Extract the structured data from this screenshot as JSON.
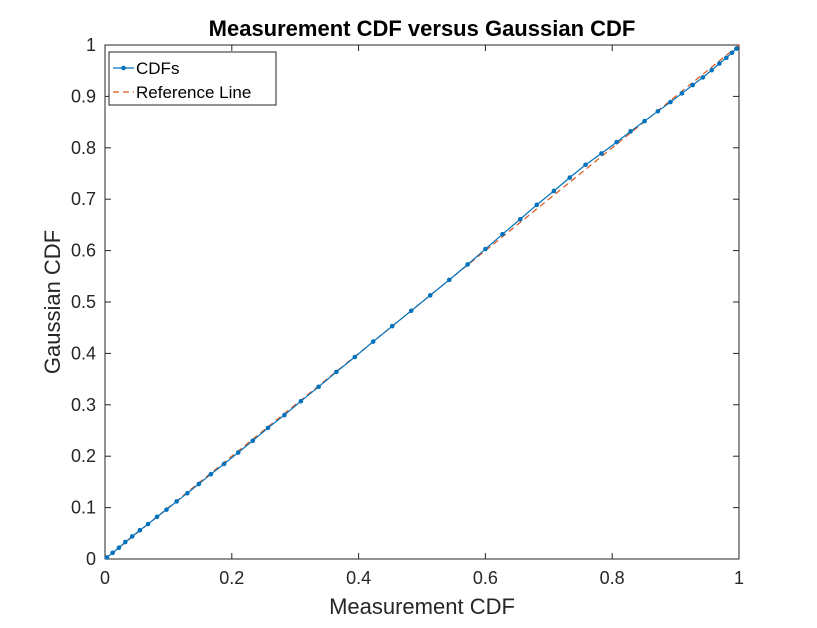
{
  "chart_data": {
    "type": "line",
    "title": "Measurement CDF versus Gaussian CDF",
    "xlabel": "Measurement CDF",
    "ylabel": "Gaussian CDF",
    "xlim": [
      0,
      1
    ],
    "ylim": [
      0,
      1
    ],
    "xticks": [
      0,
      0.2,
      0.4,
      0.6,
      0.8,
      1
    ],
    "xtick_labels": [
      "0",
      "0.2",
      "0.4",
      "0.6",
      "0.8",
      "1"
    ],
    "yticks": [
      0,
      0.1,
      0.2,
      0.3,
      0.4,
      0.5,
      0.6,
      0.7,
      0.8,
      0.9,
      1
    ],
    "ytick_labels": [
      "0",
      "0.1",
      "0.2",
      "0.3",
      "0.4",
      "0.5",
      "0.6",
      "0.7",
      "0.8",
      "0.9",
      "1"
    ],
    "grid": false,
    "legend_position": "top-left",
    "series": [
      {
        "name": "CDFs",
        "color": "#0072BD",
        "style": "solid-with-dot-markers",
        "x": [
          0.003,
          0.012,
          0.022,
          0.032,
          0.043,
          0.055,
          0.068,
          0.082,
          0.097,
          0.113,
          0.13,
          0.148,
          0.167,
          0.188,
          0.21,
          0.233,
          0.257,
          0.283,
          0.309,
          0.337,
          0.365,
          0.394,
          0.423,
          0.453,
          0.483,
          0.513,
          0.543,
          0.572,
          0.6,
          0.627,
          0.655,
          0.681,
          0.708,
          0.733,
          0.758,
          0.783,
          0.807,
          0.829,
          0.851,
          0.872,
          0.892,
          0.91,
          0.927,
          0.943,
          0.957,
          0.969,
          0.98,
          0.989,
          0.996
        ],
        "y": [
          0.003,
          0.012,
          0.022,
          0.033,
          0.044,
          0.056,
          0.068,
          0.082,
          0.096,
          0.112,
          0.128,
          0.146,
          0.165,
          0.185,
          0.207,
          0.23,
          0.255,
          0.28,
          0.307,
          0.335,
          0.364,
          0.393,
          0.423,
          0.453,
          0.483,
          0.513,
          0.543,
          0.573,
          0.603,
          0.632,
          0.661,
          0.689,
          0.716,
          0.742,
          0.767,
          0.789,
          0.811,
          0.832,
          0.852,
          0.871,
          0.889,
          0.906,
          0.922,
          0.937,
          0.951,
          0.964,
          0.975,
          0.985,
          0.993
        ]
      },
      {
        "name": "Reference Line",
        "color": "#D95319",
        "style": "dashed",
        "x": [
          0,
          1
        ],
        "y": [
          0,
          1
        ]
      }
    ]
  }
}
